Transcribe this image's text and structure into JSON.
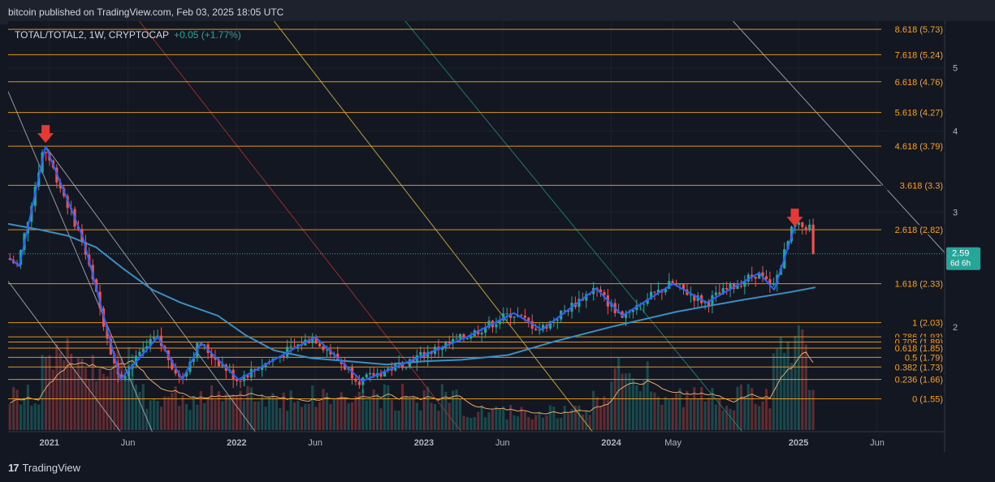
{
  "header": {
    "published": "bitcoin published on TradingView.com, Feb 03, 2025 18:05 UTC"
  },
  "footer": {
    "brand_logo": "17",
    "brand_name": "TradingView"
  },
  "colors": {
    "background": "#131722",
    "bull": "#26a69a",
    "bear": "#ef5350",
    "fib": "#f7a21b",
    "ma": "#3b8ec2",
    "zigzag": "#2962ff",
    "marker": "#e53935",
    "price_badge": "#26a69a"
  },
  "chart_data": {
    "type": "candlestick",
    "symbol": "TOTAL/TOTAL2, 1W, CRYPTOCAP",
    "change": "+0.05 (+1.77%)",
    "price_label": "2.59",
    "countdown": "6d 6h",
    "y_scale": "log",
    "ylim": [
      1.38,
      5.9
    ],
    "y_ticks": [
      "2",
      "3",
      "4",
      "5"
    ],
    "x_labels": [
      "2021",
      "Jun",
      "2022",
      "Jun",
      "2023",
      "Jun",
      "2024",
      "May",
      "2025",
      "Jun"
    ],
    "x_label_dates": [
      2021.0,
      2021.42,
      2022.0,
      2022.42,
      2023.0,
      2023.42,
      2024.0,
      2024.33,
      2025.0,
      2025.42
    ],
    "x_range": [
      2020.78,
      2025.78
    ],
    "last_date": 2025.09,
    "fib_levels": [
      {
        "label": "8.618 (5.73)",
        "value": 5.73
      },
      {
        "label": "7.618 (5.24)",
        "value": 5.24
      },
      {
        "label": "6.618 (4.76)",
        "value": 4.76
      },
      {
        "label": "5.618 (4.27)",
        "value": 4.27
      },
      {
        "label": "4.618 (3.79)",
        "value": 3.79
      },
      {
        "label": "3.618 (3.3)",
        "value": 3.3
      },
      {
        "label": "2.618 (2.82)",
        "value": 2.82
      },
      {
        "label": "1.618 (2.33)",
        "value": 2.33
      },
      {
        "label": "1 (2.03)",
        "value": 2.03
      },
      {
        "label": "0.786 (1.93)",
        "value": 1.93
      },
      {
        "label": "0.705 (1.89)",
        "value": 1.895
      },
      {
        "label": "0.618 (1.85)",
        "value": 1.855
      },
      {
        "label": "0.5 (1.79)",
        "value": 1.795
      },
      {
        "label": "0.382 (1.73)",
        "value": 1.735
      },
      {
        "label": "0.236 (1.66)",
        "value": 1.66
      },
      {
        "label": "0 (1.55)",
        "value": 1.55
      }
    ],
    "zigzag": [
      [
        2020.79,
        2.55
      ],
      [
        2020.84,
        2.48
      ],
      [
        2020.98,
        3.79
      ],
      [
        2021.18,
        2.74
      ],
      [
        2021.38,
        1.66
      ],
      [
        2021.58,
        1.93
      ],
      [
        2021.71,
        1.66
      ],
      [
        2021.81,
        1.89
      ],
      [
        2022.01,
        1.66
      ],
      [
        2022.42,
        1.93
      ],
      [
        2022.67,
        1.65
      ],
      [
        2023.23,
        1.93
      ],
      [
        2023.48,
        2.1
      ],
      [
        2023.63,
        1.98
      ],
      [
        2023.92,
        2.29
      ],
      [
        2024.06,
        2.08
      ],
      [
        2024.33,
        2.33
      ],
      [
        2024.51,
        2.18
      ],
      [
        2024.79,
        2.42
      ],
      [
        2024.87,
        2.28
      ],
      [
        2024.98,
        2.85
      ]
    ],
    "peak_markers": [
      [
        2020.98,
        3.79
      ],
      [
        2025.07,
        2.82
      ]
    ],
    "ma_points": [
      [
        2020.78,
        2.88
      ],
      [
        2020.95,
        2.82
      ],
      [
        2021.1,
        2.76
      ],
      [
        2021.25,
        2.65
      ],
      [
        2021.4,
        2.45
      ],
      [
        2021.55,
        2.28
      ],
      [
        2021.7,
        2.18
      ],
      [
        2021.9,
        2.08
      ],
      [
        2022.05,
        1.94
      ],
      [
        2022.2,
        1.84
      ],
      [
        2022.4,
        1.79
      ],
      [
        2022.6,
        1.77
      ],
      [
        2022.8,
        1.75
      ],
      [
        2023.0,
        1.77
      ],
      [
        2023.2,
        1.78
      ],
      [
        2023.45,
        1.81
      ],
      [
        2023.7,
        1.9
      ],
      [
        2024.0,
        2.0
      ],
      [
        2024.35,
        2.11
      ],
      [
        2024.7,
        2.2
      ],
      [
        2024.95,
        2.26
      ],
      [
        2025.09,
        2.3
      ]
    ],
    "diagonals": [
      {
        "name": "diag-white-1",
        "color": "#b5b9c4",
        "from": [
          2020.78,
          4.6
        ],
        "to": [
          2021.55,
          1.38
        ]
      },
      {
        "name": "diag-white-2",
        "color": "#b5b9c4",
        "from": [
          2020.98,
          3.79
        ],
        "to": [
          2022.1,
          1.38
        ]
      },
      {
        "name": "diag-white-3",
        "color": "#b5b9c4",
        "from": [
          2020.78,
          2.35
        ],
        "to": [
          2021.38,
          1.38
        ]
      },
      {
        "name": "diag-red",
        "color": "#b5362f",
        "from": [
          2021.48,
          5.9
        ],
        "to": [
          2023.2,
          1.38
        ]
      },
      {
        "name": "diag-yellow",
        "color": "#e3c33a",
        "from": [
          2022.2,
          5.9
        ],
        "to": [
          2023.9,
          1.38
        ]
      },
      {
        "name": "diag-teal",
        "color": "#1f8f7d",
        "from": [
          2022.9,
          5.9
        ],
        "to": [
          2024.7,
          1.38
        ]
      },
      {
        "name": "diag-white-4",
        "color": "#b5b9c4",
        "from": [
          2024.65,
          5.9
        ],
        "to": [
          2025.78,
          2.6
        ]
      }
    ]
  }
}
